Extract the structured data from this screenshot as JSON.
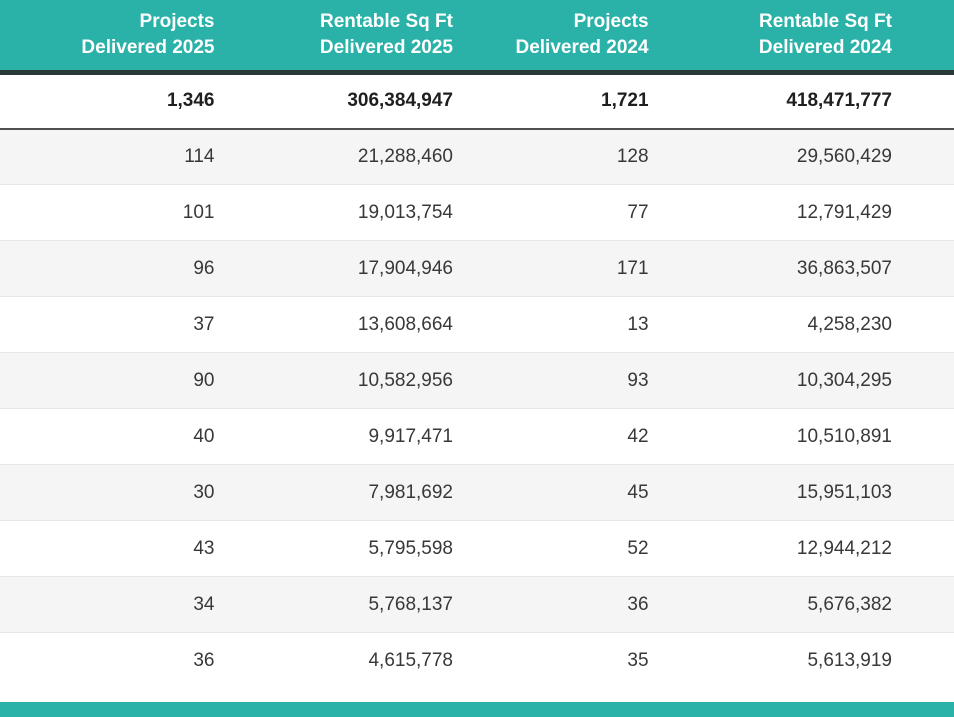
{
  "colors": {
    "accent_teal": "#2ab2a9",
    "header_text": "#ffffff",
    "header_border": "#2a3837",
    "totals_border": "#4f4f4f",
    "row_stripe": "#f5f5f5",
    "cell_text": "#383838"
  },
  "chart_data": {
    "type": "table",
    "title": "",
    "columns": [
      {
        "id": "projects_delivered_2025",
        "line1": "Projects",
        "line2": "Delivered 2025"
      },
      {
        "id": "rentable_sqft_delivered_2025",
        "line1": "Rentable Sq Ft",
        "line2": "Delivered 2025"
      },
      {
        "id": "projects_delivered_2024",
        "line1": "Projects",
        "line2": "Delivered 2024"
      },
      {
        "id": "rentable_sqft_delivered_2024",
        "line1": "Rentable Sq Ft",
        "line2": "Delivered 2024"
      }
    ],
    "totals": [
      "1,346",
      "306,384,947",
      "1,721",
      "418,471,777"
    ],
    "rows": [
      [
        "114",
        "21,288,460",
        "128",
        "29,560,429"
      ],
      [
        "101",
        "19,013,754",
        "77",
        "12,791,429"
      ],
      [
        "96",
        "17,904,946",
        "171",
        "36,863,507"
      ],
      [
        "37",
        "13,608,664",
        "13",
        "4,258,230"
      ],
      [
        "90",
        "10,582,956",
        "93",
        "10,304,295"
      ],
      [
        "40",
        "9,917,471",
        "42",
        "10,510,891"
      ],
      [
        "30",
        "7,981,692",
        "45",
        "15,951,103"
      ],
      [
        "43",
        "5,795,598",
        "52",
        "12,944,212"
      ],
      [
        "34",
        "5,768,137",
        "36",
        "5,676,382"
      ],
      [
        "36",
        "4,615,778",
        "35",
        "5,613,919"
      ]
    ]
  }
}
